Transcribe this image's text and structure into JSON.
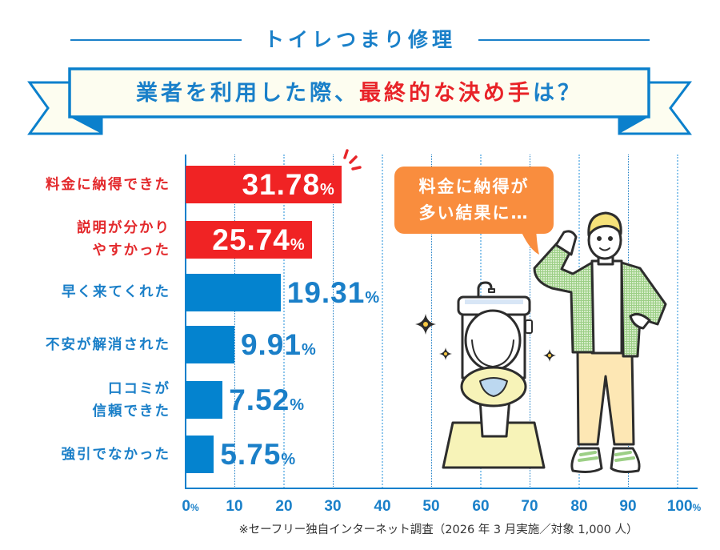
{
  "header": {
    "subtitle": "トイレつまり修理"
  },
  "banner": {
    "question_blue_1": "業者を利用した際、",
    "question_red": "最終的な決め手",
    "question_blue_2": "は？"
  },
  "chart": {
    "bars": [
      {
        "label_lines": [
          "料金に納得できた"
        ],
        "value": "31.78",
        "unit": "%",
        "highlight": true
      },
      {
        "label_lines": [
          "説明が分かり",
          "やすかった"
        ],
        "value": "25.74",
        "unit": "%",
        "highlight": true
      },
      {
        "label_lines": [
          "早く来てくれた"
        ],
        "value": "19.31",
        "unit": "%",
        "highlight": false
      },
      {
        "label_lines": [
          "不安が解消された"
        ],
        "value": "9.91",
        "unit": "%",
        "highlight": false
      },
      {
        "label_lines": [
          "口コミが",
          "信頼できた"
        ],
        "value": "7.52",
        "unit": "%",
        "highlight": false
      },
      {
        "label_lines": [
          "強引でなかった"
        ],
        "value": "5.75",
        "unit": "%",
        "highlight": false
      }
    ],
    "ticks": [
      {
        "num": "0",
        "unit": "%"
      },
      {
        "num": "10",
        "unit": ""
      },
      {
        "num": "20",
        "unit": ""
      },
      {
        "num": "30",
        "unit": ""
      },
      {
        "num": "40",
        "unit": ""
      },
      {
        "num": "50",
        "unit": ""
      },
      {
        "num": "60",
        "unit": ""
      },
      {
        "num": "70",
        "unit": ""
      },
      {
        "num": "80",
        "unit": ""
      },
      {
        "num": "90",
        "unit": ""
      },
      {
        "num": "100",
        "unit": "%"
      }
    ]
  },
  "speech_bubble": {
    "lines": [
      "料金に納得が",
      "多い結果に…"
    ]
  },
  "footnote": "※セーフリー独自インターネット調査（2026 年 3 月実施／対象 1,000 人）",
  "colors": {
    "accent_blue": "#0483cf",
    "text_blue": "#1a80c9",
    "accent_red": "#f02324",
    "bubble_orange": "#f98d3e",
    "banner_fill": "#fdfdf0"
  },
  "chart_data": {
    "type": "bar",
    "orientation": "horizontal",
    "title": "業者を利用した際、最終的な決め手は？",
    "subtitle": "トイレつまり修理",
    "categories": [
      "料金に納得できた",
      "説明が分かりやすかった",
      "早く来てくれた",
      "不安が解消された",
      "口コミが信頼できた",
      "強引でなかった"
    ],
    "values": [
      31.78,
      25.74,
      19.31,
      9.91,
      7.52,
      5.75
    ],
    "unit": "%",
    "highlighted_categories": [
      "料金に納得できた",
      "説明が分かりやすかった"
    ],
    "xlabel": "",
    "ylabel": "",
    "xlim": [
      0,
      100
    ],
    "x_ticks": [
      0,
      10,
      20,
      30,
      40,
      50,
      60,
      70,
      80,
      90,
      100
    ],
    "x_tick_labels": [
      "0%",
      "10",
      "20",
      "30",
      "40",
      "50",
      "60",
      "70",
      "80",
      "90",
      "100%"
    ],
    "grid": true,
    "legend": null,
    "annotations": [
      "料金に納得が多い結果に…"
    ],
    "note": "※セーフリー独自インターネット調査（2026 年 3 月実施／対象 1,000 人）"
  }
}
